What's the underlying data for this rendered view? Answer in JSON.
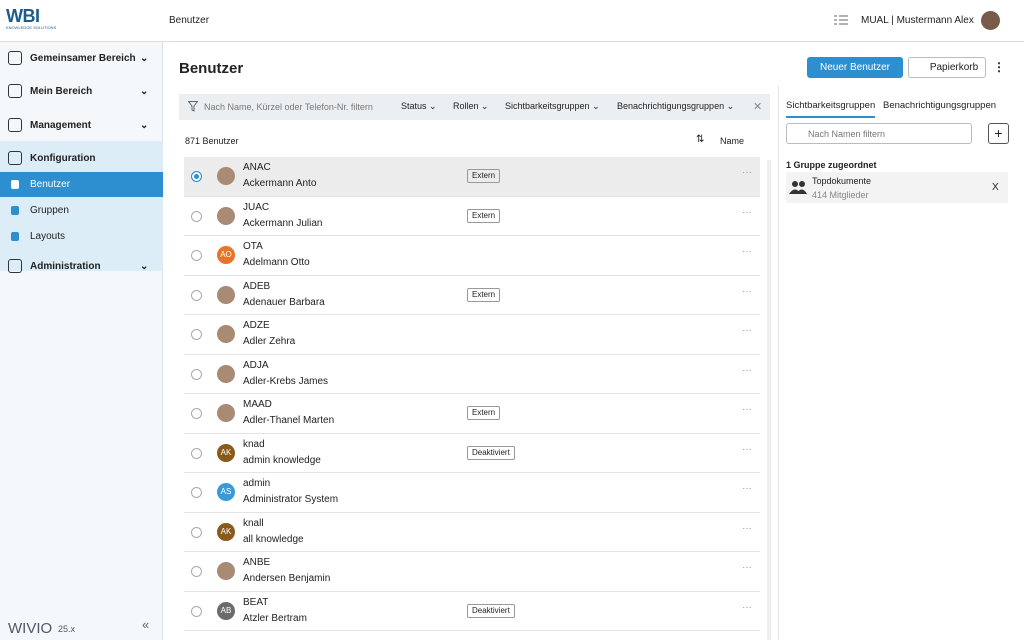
{
  "header": {
    "logo": "WBI",
    "logo_sub": "KNOWLEDGE SOLUTIONS",
    "breadcrumb": "Benutzer",
    "user": "MUAL | Mustermann Alex"
  },
  "sidebar": {
    "items": [
      {
        "label": "Gemeinsamer Bereich"
      },
      {
        "label": "Mein Bereich"
      },
      {
        "label": "Management"
      },
      {
        "label": "Konfiguration",
        "children": [
          "Benutzer",
          "Gruppen",
          "Layouts"
        ]
      },
      {
        "label": "Administration"
      }
    ],
    "brand": "WIVIO",
    "version": "25.x",
    "collapse": "«"
  },
  "main": {
    "title": "Benutzer",
    "new_button": "Neuer Benutzer",
    "trash_button": "Papierkorb",
    "filter_placeholder": "Nach Name, Kürzel oder Telefon-Nr. filtern",
    "filters": [
      "Status",
      "Rollen",
      "Sichtbarkeitsgruppen",
      "Benachrichtigungsgruppen"
    ],
    "count": "871 Benutzer",
    "sort": "Name",
    "rows": [
      {
        "code": "ANAC",
        "name": "Ackermann Anto",
        "tag": "Extern"
      },
      {
        "code": "JUAC",
        "name": "Ackermann Julian",
        "tag": "Extern"
      },
      {
        "code": "OTA",
        "name": "Adelmann Otto",
        "initials": "AO",
        "color": "#e8742a"
      },
      {
        "code": "ADEB",
        "name": "Adenauer Barbara",
        "tag": "Extern"
      },
      {
        "code": "ADZE",
        "name": "Adler Zehra"
      },
      {
        "code": "ADJA",
        "name": "Adler-Krebs James"
      },
      {
        "code": "MAAD",
        "name": "Adler-Thanel Marten",
        "tag": "Extern"
      },
      {
        "code": "knad",
        "name": "admin knowledge",
        "initials": "AK",
        "color": "#8a5a1c",
        "tag": "Deaktiviert"
      },
      {
        "code": "admin",
        "name": "Administrator System",
        "initials": "AS",
        "color": "#3a9ad9"
      },
      {
        "code": "knall",
        "name": "all knowledge",
        "initials": "AK",
        "color": "#8a5a1c"
      },
      {
        "code": "ANBE",
        "name": "Andersen Benjamin"
      },
      {
        "code": "BEAT",
        "name": "Atzler Bertram",
        "initials": "AB",
        "color": "#6b6b6b",
        "tag": "Deaktiviert"
      }
    ]
  },
  "panel": {
    "tabs": [
      "Sichtbarkeitsgruppen",
      "Benachrichtigungsgruppen"
    ],
    "filter_placeholder": "Nach Namen filtern",
    "assigned": "1 Gruppe zugeordnet",
    "group": {
      "name": "Topdokumente",
      "members": "414 Mitglieder"
    },
    "remove": "X"
  }
}
